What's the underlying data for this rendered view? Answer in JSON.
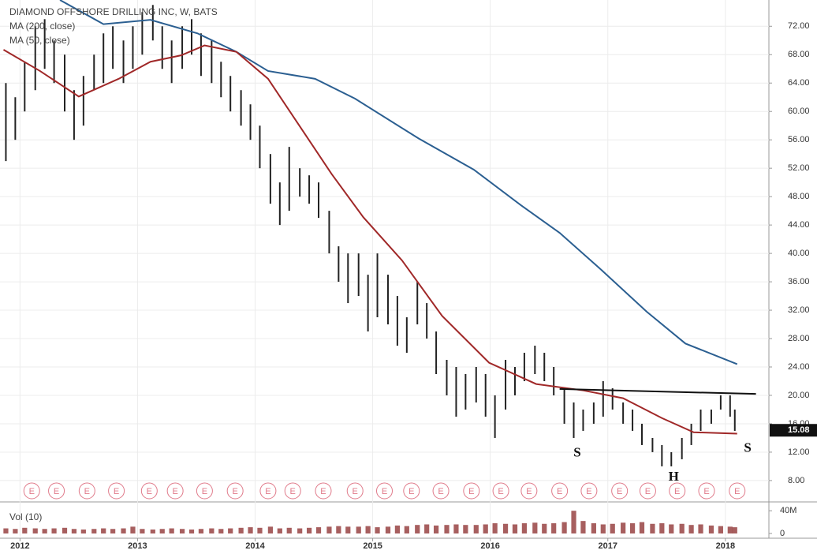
{
  "chart_data": {
    "type": "ohlc",
    "title": "DIAMOND OFFSHORE DRILLING INC, W, BATS",
    "color": "#222222",
    "x": [
      2011.88,
      2011.96,
      2012.04,
      2012.13,
      2012.21,
      2012.29,
      2012.38,
      2012.46,
      2012.54,
      2012.63,
      2012.71,
      2012.79,
      2012.88,
      2012.96,
      2013.04,
      2013.13,
      2013.21,
      2013.29,
      2013.38,
      2013.46,
      2013.54,
      2013.63,
      2013.71,
      2013.79,
      2013.88,
      2013.96,
      2014.04,
      2014.13,
      2014.21,
      2014.29,
      2014.38,
      2014.46,
      2014.54,
      2014.63,
      2014.71,
      2014.79,
      2014.88,
      2014.96,
      2015.04,
      2015.13,
      2015.21,
      2015.29,
      2015.38,
      2015.46,
      2015.54,
      2015.63,
      2015.71,
      2015.79,
      2015.88,
      2015.96,
      2016.04,
      2016.13,
      2016.21,
      2016.29,
      2016.38,
      2016.46,
      2016.54,
      2016.63,
      2016.71,
      2016.79,
      2016.88,
      2016.96,
      2017.04,
      2017.13,
      2017.21,
      2017.29,
      2017.38,
      2017.46,
      2017.54,
      2017.63,
      2017.71,
      2017.79,
      2017.88,
      2017.96,
      2018.04,
      2018.08
    ],
    "low": [
      53,
      56,
      60,
      63,
      66,
      64,
      60,
      56,
      58,
      63,
      64,
      66,
      64,
      66,
      68,
      70,
      66,
      64,
      66,
      68,
      65,
      64,
      62,
      60,
      58,
      56,
      52,
      47,
      44,
      46,
      48,
      47,
      45,
      40,
      36,
      33,
      34,
      29,
      31,
      30,
      27,
      26,
      30,
      28,
      23,
      20,
      17,
      18,
      19,
      17,
      14,
      18,
      20,
      22,
      23,
      22,
      20,
      16,
      14,
      15,
      16,
      17,
      18,
      16,
      15,
      13,
      12,
      10,
      10,
      11,
      13,
      15,
      16,
      18,
      17,
      15
    ],
    "high": [
      64,
      62,
      67,
      72,
      73,
      70,
      68,
      63,
      65,
      68,
      71,
      72,
      70,
      72,
      74,
      75,
      72,
      70,
      72,
      73,
      71,
      70,
      67,
      65,
      63,
      61,
      58,
      54,
      50,
      55,
      52,
      51,
      50,
      46,
      41,
      40,
      40,
      37,
      40,
      37,
      34,
      31,
      36,
      33,
      29,
      25,
      24,
      23,
      24,
      23,
      20,
      25,
      24,
      26,
      27,
      26,
      24,
      21,
      19,
      18,
      19,
      22,
      21,
      19,
      18,
      16,
      14,
      13,
      12,
      14,
      16,
      18,
      18,
      20,
      20,
      18
    ],
    "series": [
      {
        "name": "MA (200, close)",
        "color": "#2b5f91",
        "x": [
          2012.34,
          2012.71,
          2013.11,
          2013.51,
          2013.84,
          2014.11,
          2014.51,
          2014.85,
          2015.39,
          2015.86,
          2016.26,
          2016.59,
          2016.93,
          2017.33,
          2017.66,
          2018.1
        ],
        "values": [
          75.7,
          72.3,
          72.9,
          71.0,
          68.4,
          65.7,
          64.6,
          61.8,
          56.2,
          51.8,
          46.8,
          42.9,
          37.9,
          31.8,
          27.3,
          24.4
        ]
      },
      {
        "name": "MA (50, close)",
        "color": "#a02828",
        "x": [
          2011.86,
          2012.17,
          2012.5,
          2012.84,
          2013.11,
          2013.37,
          2013.57,
          2013.84,
          2014.11,
          2014.38,
          2014.65,
          2014.92,
          2015.25,
          2015.59,
          2015.99,
          2016.39,
          2016.79,
          2017.13,
          2017.46,
          2017.73,
          2018.1
        ],
        "values": [
          68.7,
          65.7,
          62.1,
          64.6,
          67.0,
          67.9,
          69.3,
          68.4,
          64.6,
          57.9,
          51.2,
          45.1,
          39.0,
          31.2,
          24.6,
          21.6,
          20.7,
          19.6,
          16.8,
          14.8,
          14.6
        ]
      }
    ],
    "trendline": {
      "color": "#111111",
      "x": [
        2016.59,
        2018.26
      ],
      "values": [
        20.9,
        20.2
      ]
    },
    "annotations": [
      {
        "text": "S",
        "x": 2016.74,
        "y": 11.8
      },
      {
        "text": "H",
        "x": 2017.56,
        "y": 8.4
      },
      {
        "text": "S",
        "x": 2018.19,
        "y": 12.5
      }
    ],
    "earnings": {
      "label": "E",
      "color": "#e07a8a",
      "x": [
        2012.1,
        2012.31,
        2012.57,
        2012.82,
        2013.1,
        2013.32,
        2013.57,
        2013.83,
        2014.11,
        2014.32,
        2014.58,
        2014.85,
        2015.1,
        2015.33,
        2015.58,
        2015.84,
        2016.09,
        2016.33,
        2016.59,
        2016.84,
        2017.1,
        2017.34,
        2017.59,
        2017.84,
        2018.1
      ]
    },
    "last_price": 15.08,
    "xlim": [
      2011.83,
      2018.37
    ],
    "xticks": [
      2012,
      2013,
      2014,
      2015,
      2016,
      2017,
      2018
    ],
    "ylim": [
      5.1,
      75.7
    ],
    "yticks": [
      {
        "value": 8,
        "label": "8.00"
      },
      {
        "value": 12,
        "label": "12.00"
      },
      {
        "value": 16,
        "label": "16.00"
      },
      {
        "value": 20,
        "label": "20.00"
      },
      {
        "value": 24,
        "label": "24.00"
      },
      {
        "value": 28,
        "label": "28.00"
      },
      {
        "value": 32,
        "label": "32.00"
      },
      {
        "value": 36,
        "label": "36.00"
      },
      {
        "value": 40,
        "label": "40.00"
      },
      {
        "value": 44,
        "label": "44.00"
      },
      {
        "value": 48,
        "label": "48.00"
      },
      {
        "value": 52,
        "label": "52.00"
      },
      {
        "value": 56,
        "label": "56.00"
      },
      {
        "value": 60,
        "label": "60.00"
      },
      {
        "value": 64,
        "label": "64.00"
      },
      {
        "value": 68,
        "label": "68.00"
      },
      {
        "value": 72,
        "label": "72.00"
      }
    ],
    "grid": true,
    "volume": {
      "name": "Vol (10)",
      "color": "#8a2a2a",
      "values": [
        9000000,
        8000000,
        10000000,
        9000000,
        8000000,
        9000000,
        10000000,
        8000000,
        7000000,
        8000000,
        9000000,
        8000000,
        9000000,
        12000000,
        8000000,
        7000000,
        8000000,
        9000000,
        8000000,
        7000000,
        8000000,
        9000000,
        8000000,
        9000000,
        10000000,
        11000000,
        10000000,
        12000000,
        9000000,
        10000000,
        9000000,
        10000000,
        11000000,
        12000000,
        13000000,
        12000000,
        12000000,
        13000000,
        11000000,
        12000000,
        14000000,
        13000000,
        15000000,
        16000000,
        14000000,
        15000000,
        16000000,
        15000000,
        15000000,
        16000000,
        18000000,
        17000000,
        16000000,
        18000000,
        19000000,
        17000000,
        18000000,
        20000000,
        40000000,
        22000000,
        18000000,
        16000000,
        17000000,
        19000000,
        18000000,
        20000000,
        17000000,
        18000000,
        16000000,
        17000000,
        15000000,
        16000000,
        14000000,
        13000000,
        12000000,
        11000000
      ],
      "ylim": [
        0,
        50000000
      ],
      "yticks": [
        {
          "value": 40000000,
          "label": "40M"
        },
        0
      ]
    }
  }
}
